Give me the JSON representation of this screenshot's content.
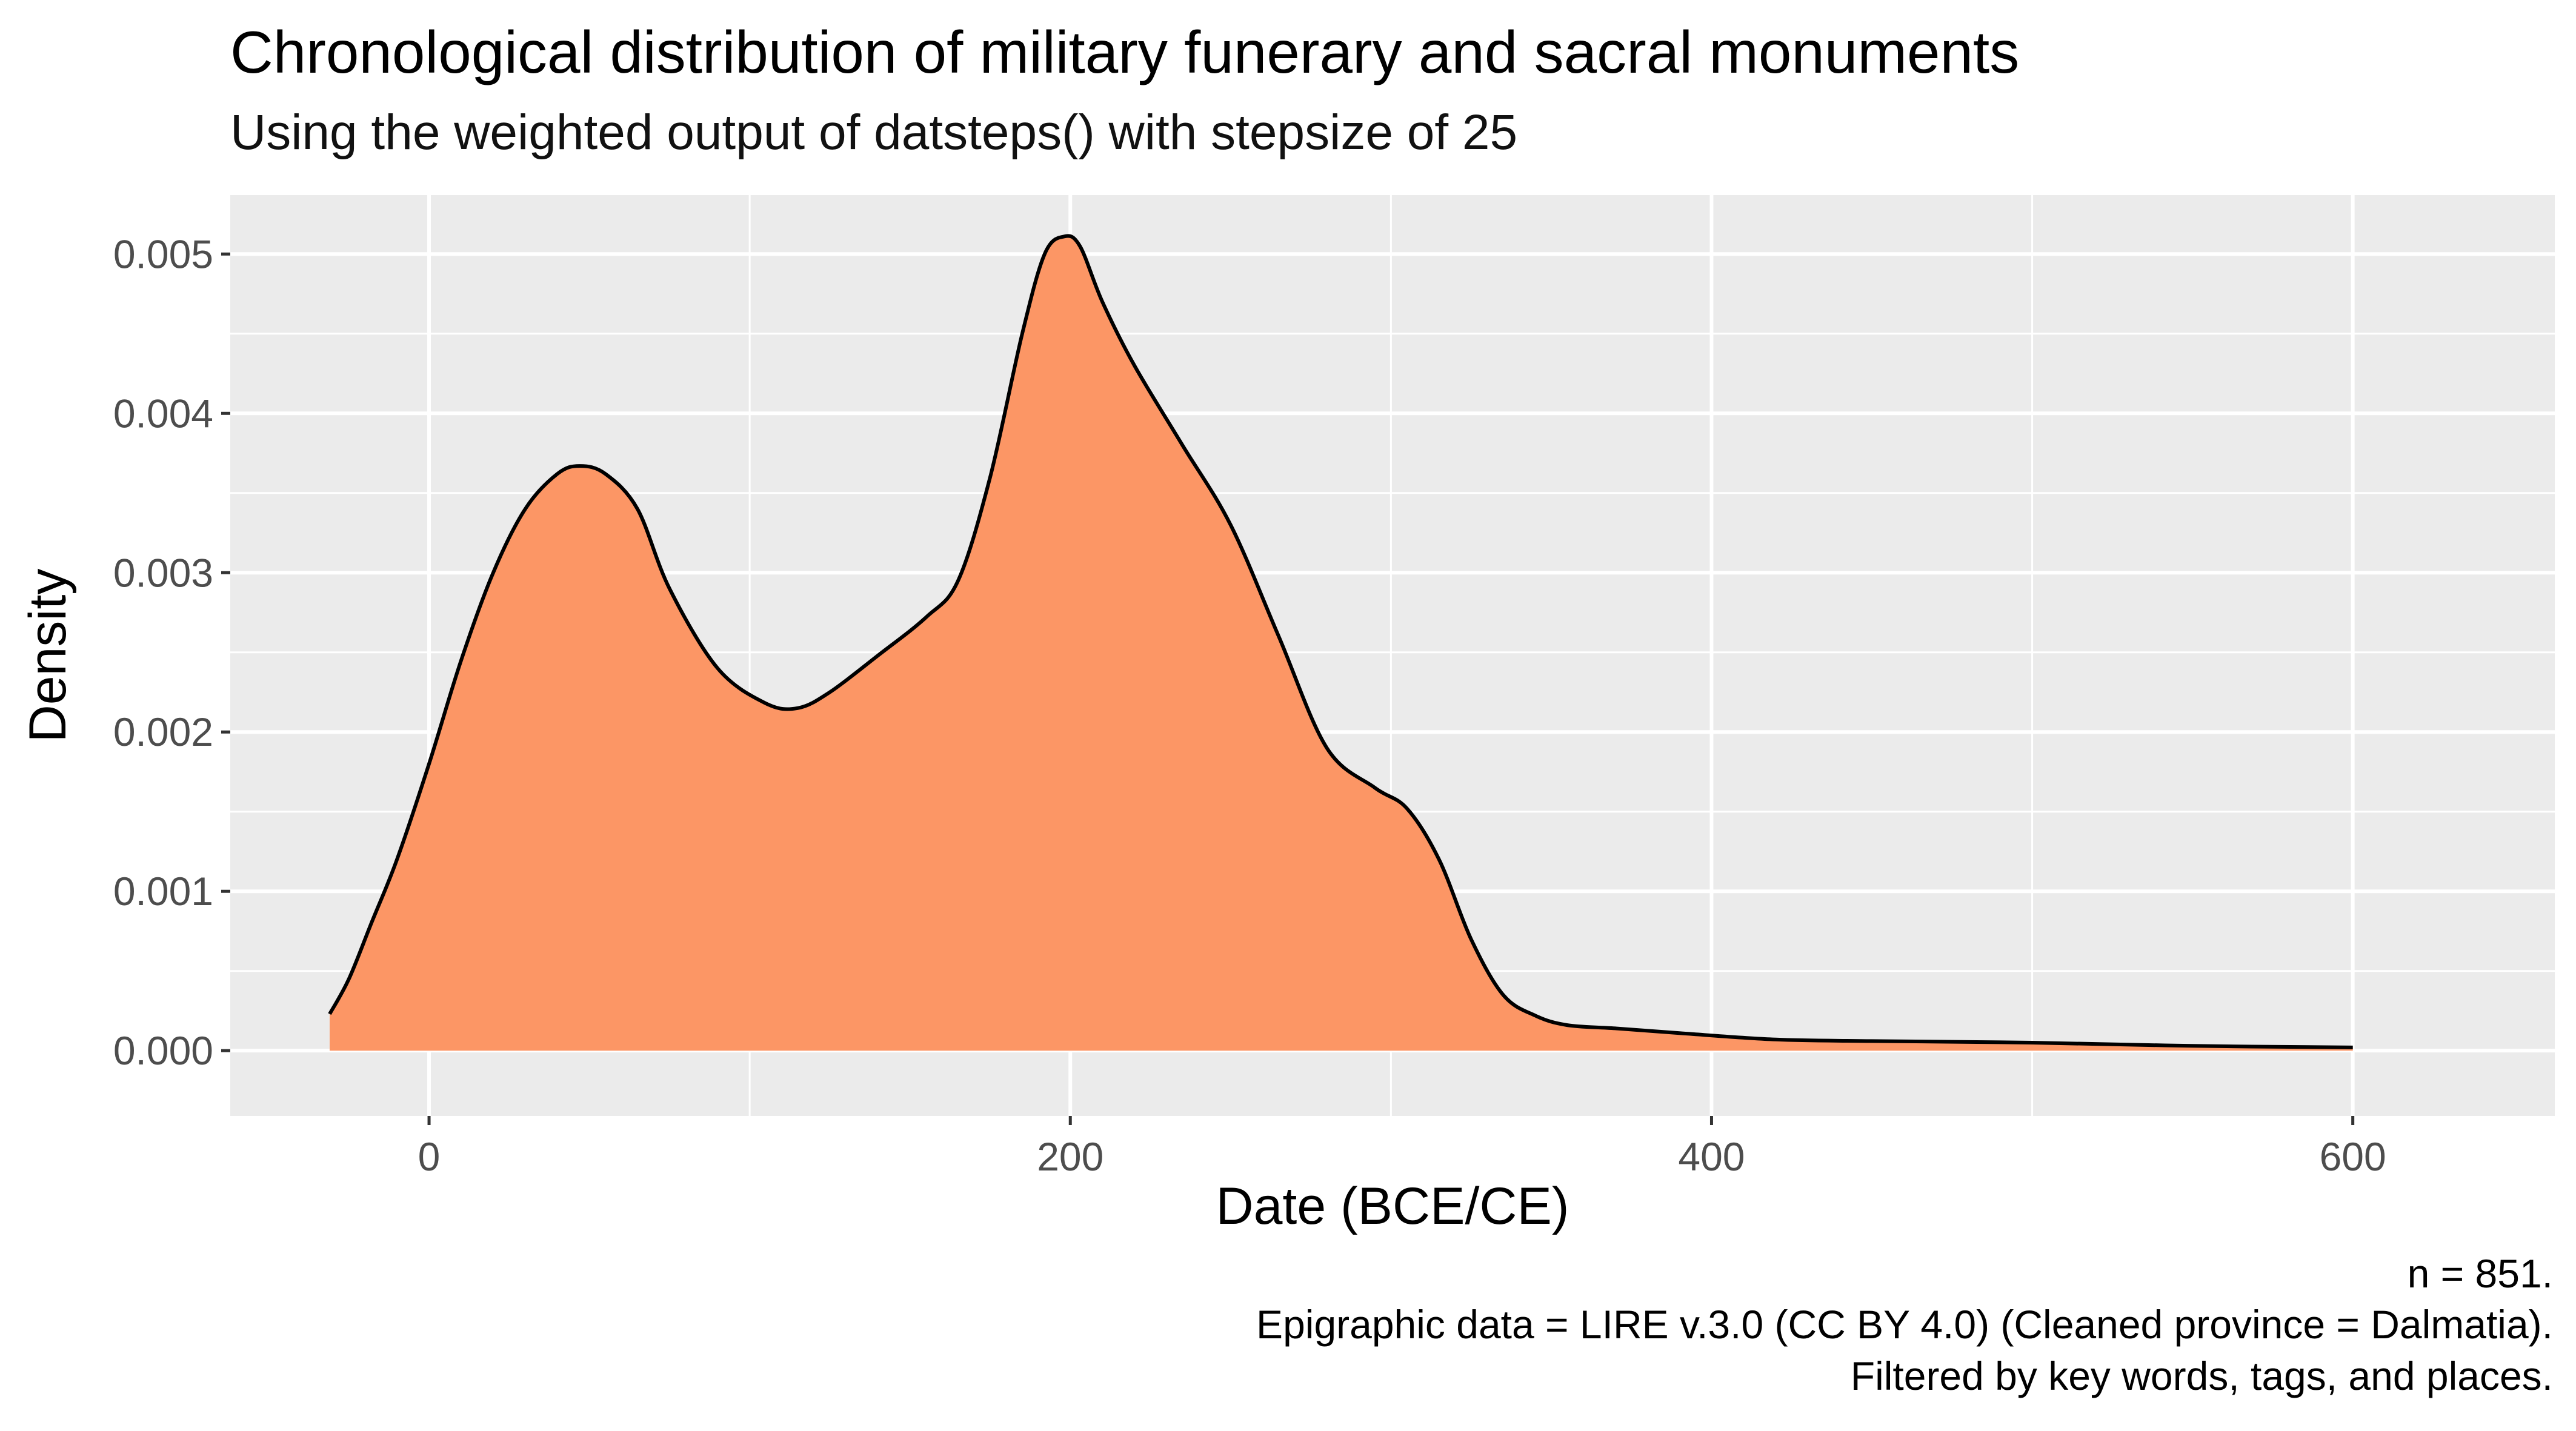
{
  "chart_data": {
    "type": "area",
    "title": "Chronological distribution of military funerary and sacral monuments",
    "subtitle": "Using the weighted output of datsteps() with stepsize of 25",
    "xlabel": "Date (BCE/CE)",
    "ylabel": "Density",
    "xlim": [
      -62,
      663
    ],
    "ylim": [
      -0.00041,
      0.00537
    ],
    "x_ticks": [
      0,
      200,
      400,
      600
    ],
    "x_tick_labels": [
      "0",
      "200",
      "400",
      "600"
    ],
    "x_minor_ticks": [
      100,
      300,
      500
    ],
    "y_ticks": [
      0,
      0.001,
      0.002,
      0.003,
      0.004,
      0.005
    ],
    "y_tick_labels": [
      "0.000",
      "0.001",
      "0.002",
      "0.003",
      "0.004",
      "0.005"
    ],
    "y_minor_ticks": [
      0.0005,
      0.0015,
      0.0025,
      0.0035,
      0.0045
    ],
    "grid": true,
    "series": [
      {
        "name": "density",
        "fill_color": "#FC9665",
        "line_color": "#000000",
        "x": [
          -31,
          -25,
          -18,
          -10,
          0,
          10,
          20,
          30,
          40,
          47,
          55,
          65,
          75,
          90,
          105,
          115,
          125,
          140,
          155,
          165,
          175,
          185,
          192,
          198,
          203,
          210,
          220,
          235,
          250,
          265,
          280,
          295,
          305,
          315,
          325,
          335,
          345,
          355,
          370,
          390,
          420,
          450,
          500,
          550,
          600
        ],
        "y": [
          0.00023,
          0.00045,
          0.0008,
          0.0012,
          0.0018,
          0.00245,
          0.003,
          0.0034,
          0.00362,
          0.00367,
          0.00362,
          0.0034,
          0.0029,
          0.0024,
          0.00218,
          0.00215,
          0.00225,
          0.00248,
          0.00272,
          0.00295,
          0.0036,
          0.0045,
          0.005,
          0.00511,
          0.00505,
          0.0047,
          0.0043,
          0.0038,
          0.0033,
          0.0026,
          0.0019,
          0.00165,
          0.00152,
          0.0012,
          0.0007,
          0.00035,
          0.00022,
          0.00016,
          0.00014,
          0.00011,
          7e-05,
          6e-05,
          5e-05,
          3e-05,
          2e-05
        ]
      }
    ]
  },
  "caption": {
    "n": "n = 851.",
    "source": "Epigraphic data = LIRE v.3.0 (CC BY 4.0) (Cleaned province = Dalmatia).",
    "filter": "Filtered by key words, tags, and places."
  },
  "colors": {
    "panel_background": "#EBEBEB",
    "grid": "#FFFFFF",
    "tick_text": "#4D4D4D",
    "tick_mark": "#333333",
    "fill": "#FC9665"
  }
}
